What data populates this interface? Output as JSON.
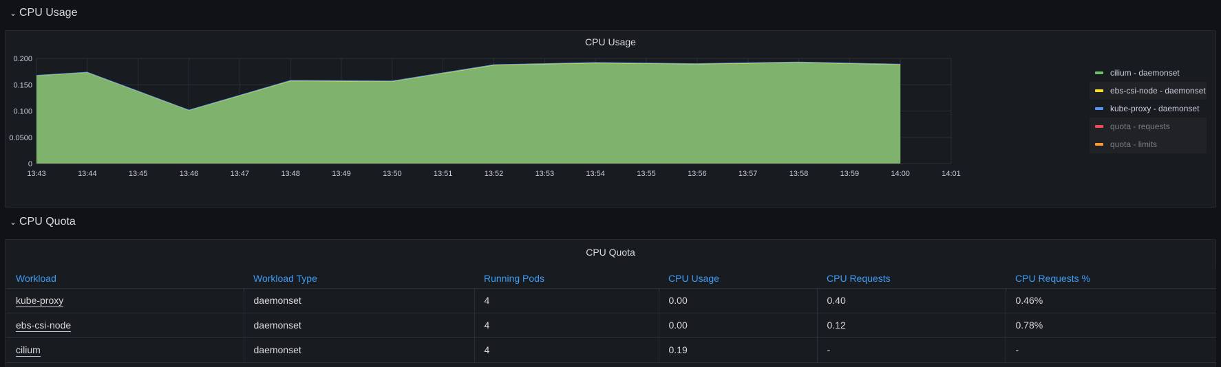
{
  "rows": {
    "cpu_usage": {
      "title": "CPU Usage"
    },
    "cpu_quota": {
      "title": "CPU Quota"
    }
  },
  "usage_panel": {
    "title": "CPU Usage",
    "legend": [
      {
        "label": "cilium - daemonset",
        "color": "#73bf69",
        "hidden": false
      },
      {
        "label": "ebs-csi-node - daemonset",
        "color": "#fade2a",
        "hidden": false
      },
      {
        "label": "kube-proxy - daemonset",
        "color": "#5794f2",
        "hidden": false
      },
      {
        "label": "quota - requests",
        "color": "#f2495c",
        "hidden": true
      },
      {
        "label": "quota - limits",
        "color": "#ff9830",
        "hidden": true
      }
    ]
  },
  "chart_data": {
    "type": "area",
    "title": "CPU Usage",
    "xlabel": "",
    "ylabel": "",
    "x_ticks": [
      "13:43",
      "13:44",
      "13:45",
      "13:46",
      "13:47",
      "13:48",
      "13:49",
      "13:50",
      "13:51",
      "13:52",
      "13:53",
      "13:54",
      "13:55",
      "13:56",
      "13:57",
      "13:58",
      "13:59",
      "14:00",
      "14:01"
    ],
    "y_ticks": [
      "0",
      "0.0500",
      "0.100",
      "0.150",
      "0.200"
    ],
    "ylim": [
      0,
      0.2
    ],
    "xlim": [
      "13:43",
      "14:01"
    ],
    "x": [
      "13:43",
      "13:44",
      "13:46",
      "13:48",
      "13:50",
      "13:52",
      "13:54",
      "13:56",
      "13:58",
      "14:00"
    ],
    "series": [
      {
        "name": "cilium - daemonset",
        "color": "#73bf69",
        "values": [
          0.167,
          0.173,
          0.101,
          0.157,
          0.156,
          0.187,
          0.191,
          0.189,
          0.192,
          0.188
        ]
      },
      {
        "name": "ebs-csi-node - daemonset",
        "color": "#fade2a",
        "values": [
          0.0003,
          0.0003,
          0.0003,
          0.0003,
          0.0003,
          0.0003,
          0.0003,
          0.0003,
          0.0003,
          0.0003
        ]
      },
      {
        "name": "kube-proxy - daemonset",
        "color": "#5794f2",
        "values": [
          0.0005,
          0.0005,
          0.0005,
          0.0008,
          0.0008,
          0.0008,
          0.0008,
          0.0008,
          0.0008,
          0.0008
        ]
      }
    ],
    "grid": true,
    "legend_position": "right"
  },
  "quota_panel": {
    "title": "CPU Quota",
    "columns": [
      "Workload",
      "Workload Type",
      "Running Pods",
      "CPU Usage",
      "CPU Requests",
      "CPU Requests %"
    ],
    "rows": [
      [
        "kube-proxy",
        "daemonset",
        "4",
        "0.00",
        "0.40",
        "0.46%"
      ],
      [
        "ebs-csi-node",
        "daemonset",
        "4",
        "0.00",
        "0.12",
        "0.78%"
      ],
      [
        "cilium",
        "daemonset",
        "4",
        "0.19",
        "-",
        "-"
      ]
    ]
  }
}
